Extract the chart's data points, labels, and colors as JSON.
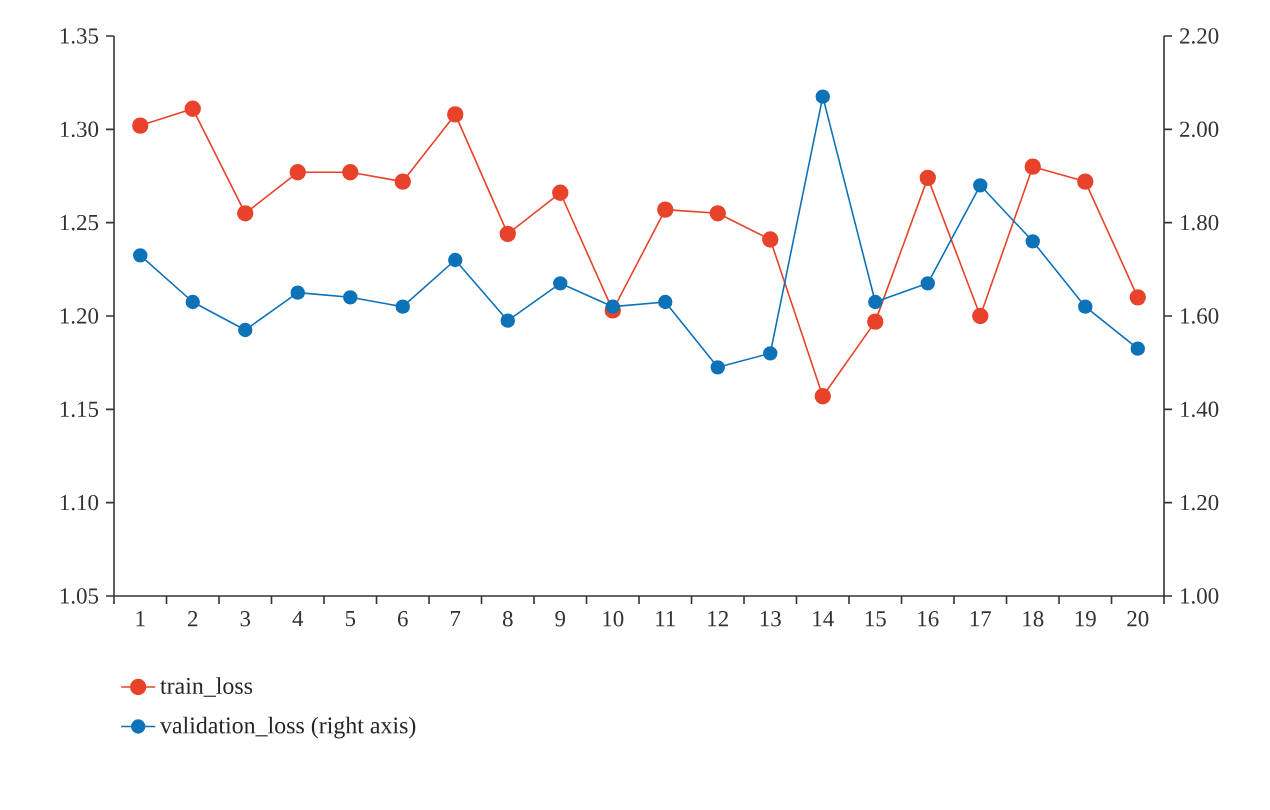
{
  "chart_data": {
    "type": "line",
    "categories": [
      "1",
      "2",
      "3",
      "4",
      "5",
      "6",
      "7",
      "8",
      "9",
      "10",
      "11",
      "12",
      "13",
      "14",
      "15",
      "16",
      "17",
      "18",
      "19",
      "20"
    ],
    "series": [
      {
        "name": "train_loss",
        "color": "#e8432a",
        "values": [
          1.302,
          1.311,
          1.255,
          1.277,
          1.277,
          1.272,
          1.308,
          1.244,
          1.266,
          1.203,
          1.257,
          1.255,
          1.241,
          1.157,
          1.197,
          1.274,
          1.2,
          1.28,
          1.272,
          1.21
        ]
      },
      {
        "name": "validation_loss (right axis)",
        "color": "#0e72b8",
        "axis": "y2",
        "values": [
          1.73,
          1.63,
          1.57,
          1.65,
          1.64,
          1.62,
          1.72,
          1.59,
          1.67,
          1.62,
          1.63,
          1.49,
          1.52,
          2.07,
          1.63,
          1.67,
          1.88,
          1.76,
          1.62,
          1.53
        ]
      }
    ],
    "ylim": [
      1.05,
      1.35
    ],
    "yticks": [
      {
        "value": 1.05,
        "label": "1.05"
      },
      {
        "value": 1.1,
        "label": "1.10"
      },
      {
        "value": 1.15,
        "label": "1.15"
      },
      {
        "value": 1.2,
        "label": "1.20"
      },
      {
        "value": 1.25,
        "label": "1.25"
      },
      {
        "value": 1.3,
        "label": "1.30"
      },
      {
        "value": 1.35,
        "label": "1.35"
      }
    ],
    "y2lim": [
      1.0,
      2.2
    ],
    "y2ticks": [
      {
        "value": 1.0,
        "label": "1.00"
      },
      {
        "value": 1.2,
        "label": "1.20"
      },
      {
        "value": 1.4,
        "label": "1.40"
      },
      {
        "value": 1.6,
        "label": "1.60"
      },
      {
        "value": 1.8,
        "label": "1.80"
      },
      {
        "value": 2.0,
        "label": "2.00"
      },
      {
        "value": 2.2,
        "label": "2.20"
      }
    ],
    "marker": "circle",
    "line_style": "solid",
    "legend": "bottom",
    "grid": false
  }
}
